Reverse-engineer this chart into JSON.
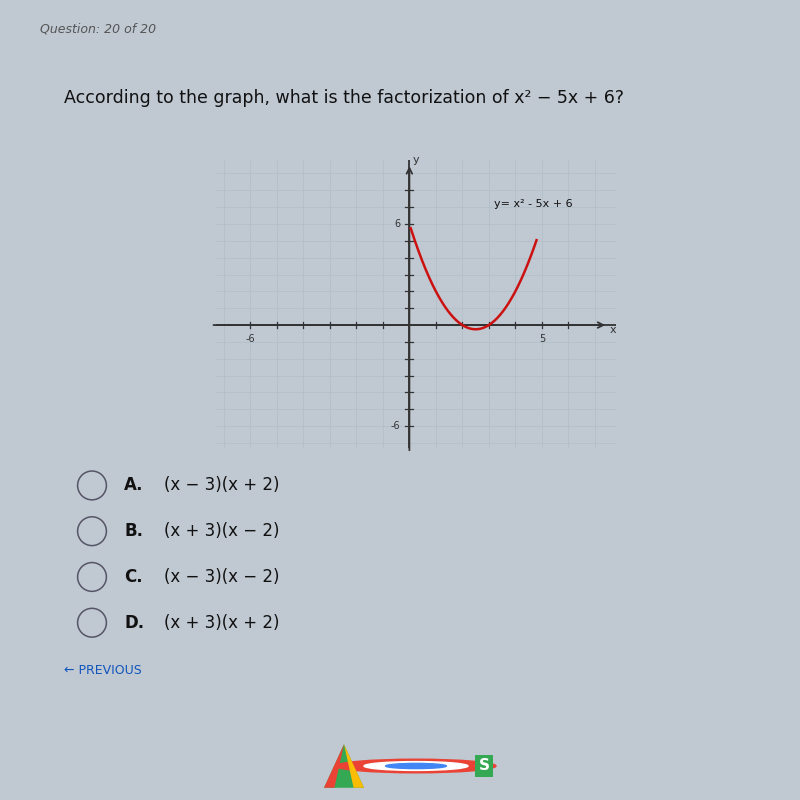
{
  "question": "According to the graph, what is the factorization of x² − 5x + 6?",
  "equation_label": "y= x² - 5x + 6",
  "curve_color": "#cc1111",
  "graph_bg": "#d8e4ee",
  "page_bg_top": "#b8bfc8",
  "page_bg_main": "#c0c8d2",
  "xlim": [
    -7,
    7
  ],
  "ylim": [
    -7,
    9
  ],
  "choices": [
    {
      "letter": "A.",
      "text": "(x − 3)(x + 2)"
    },
    {
      "letter": "B.",
      "text": "(x + 3)(x − 2)"
    },
    {
      "letter": "C.",
      "text": "(x − 3)(x − 2)"
    },
    {
      "letter": "D.",
      "text": "(x + 3)(x + 2)"
    }
  ],
  "previous_text": "← PREVIOUS",
  "taskbar_color": "#0a0a14",
  "bottom_bar_color": "#1a1a2e"
}
